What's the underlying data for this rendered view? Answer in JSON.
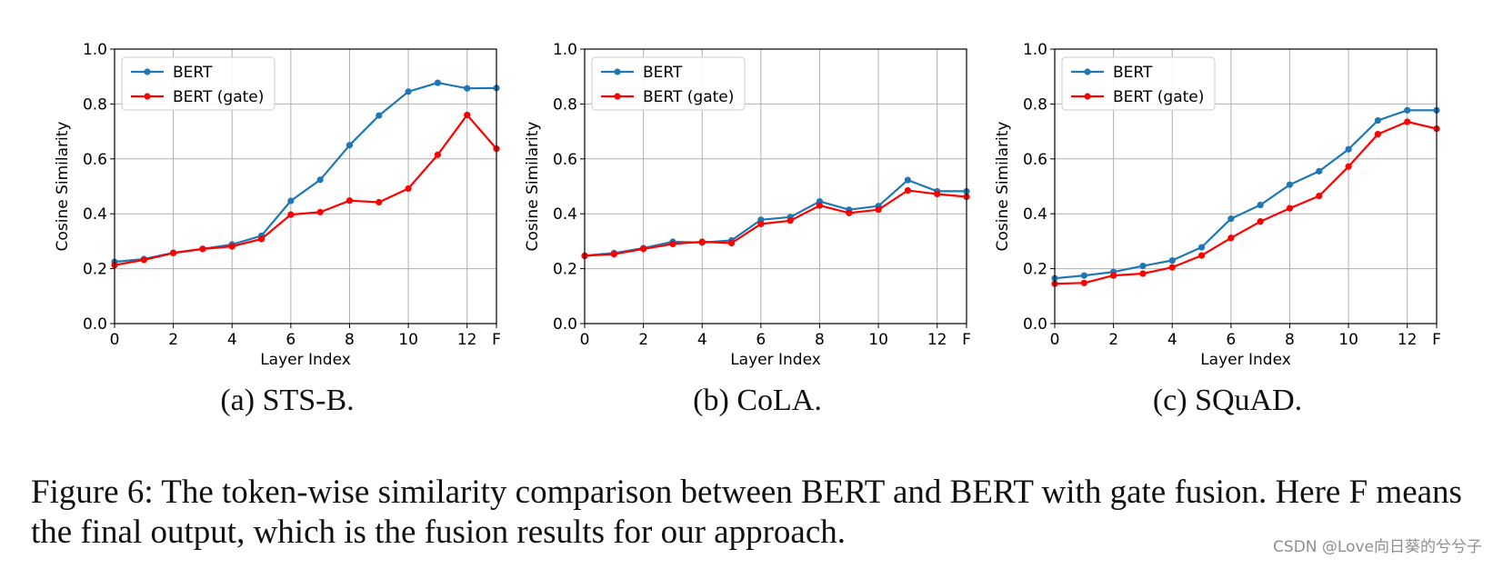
{
  "chart_data": [
    {
      "type": "line",
      "subcaption": "(a) STS-B.",
      "xlabel": "Layer Index",
      "ylabel": "Cosine Similarity",
      "x": [
        0,
        1,
        2,
        3,
        4,
        5,
        6,
        7,
        8,
        9,
        10,
        11,
        12,
        13
      ],
      "xlim": [
        0,
        13
      ],
      "ylim": [
        0,
        1
      ],
      "xticks": [
        0,
        2,
        4,
        6,
        8,
        10,
        12,
        13
      ],
      "xtick_labels": [
        "0",
        "2",
        "4",
        "6",
        "8",
        "10",
        "12",
        "F"
      ],
      "yticks": [
        0.0,
        0.2,
        0.4,
        0.6,
        0.8,
        1.0
      ],
      "ytick_labels": [
        "0.0",
        "0.2",
        "0.4",
        "0.6",
        "0.8",
        "1.0"
      ],
      "grid": true,
      "legend": "top-left",
      "series": [
        {
          "name": "BERT",
          "color": "#1f77b4",
          "values": [
            0.225,
            0.235,
            0.258,
            0.272,
            0.288,
            0.32,
            0.447,
            0.524,
            0.65,
            0.758,
            0.845,
            0.877,
            0.857,
            0.858
          ]
        },
        {
          "name": "BERT (gate)",
          "color": "#ff0000",
          "values": [
            0.213,
            0.232,
            0.257,
            0.272,
            0.281,
            0.308,
            0.397,
            0.406,
            0.448,
            0.442,
            0.492,
            0.615,
            0.76,
            0.637
          ]
        }
      ]
    },
    {
      "type": "line",
      "subcaption": "(b) CoLA.",
      "xlabel": "Layer Index",
      "ylabel": "Cosine Similarity",
      "x": [
        0,
        1,
        2,
        3,
        4,
        5,
        6,
        7,
        8,
        9,
        10,
        11,
        12,
        13
      ],
      "xlim": [
        0,
        13
      ],
      "ylim": [
        0,
        1
      ],
      "xticks": [
        0,
        2,
        4,
        6,
        8,
        10,
        12,
        13
      ],
      "xtick_labels": [
        "0",
        "2",
        "4",
        "6",
        "8",
        "10",
        "12",
        "F"
      ],
      "yticks": [
        0.0,
        0.2,
        0.4,
        0.6,
        0.8,
        1.0
      ],
      "ytick_labels": [
        "0.0",
        "0.2",
        "0.4",
        "0.6",
        "0.8",
        "1.0"
      ],
      "grid": true,
      "legend": "top-left",
      "series": [
        {
          "name": "BERT",
          "color": "#1f77b4",
          "values": [
            0.247,
            0.257,
            0.275,
            0.298,
            0.295,
            0.303,
            0.378,
            0.388,
            0.445,
            0.415,
            0.428,
            0.523,
            0.482,
            0.482
          ]
        },
        {
          "name": "BERT (gate)",
          "color": "#ff0000",
          "values": [
            0.247,
            0.253,
            0.272,
            0.29,
            0.298,
            0.293,
            0.363,
            0.375,
            0.43,
            0.403,
            0.415,
            0.485,
            0.472,
            0.462
          ]
        }
      ]
    },
    {
      "type": "line",
      "subcaption": "(c) SQuAD.",
      "xlabel": "Layer Index",
      "ylabel": "Cosine Similarity",
      "x": [
        0,
        1,
        2,
        3,
        4,
        5,
        6,
        7,
        8,
        9,
        10,
        11,
        12,
        13
      ],
      "xlim": [
        0,
        13
      ],
      "ylim": [
        0,
        1
      ],
      "xticks": [
        0,
        2,
        4,
        6,
        8,
        10,
        12,
        13
      ],
      "xtick_labels": [
        "0",
        "2",
        "4",
        "6",
        "8",
        "10",
        "12",
        "F"
      ],
      "yticks": [
        0.0,
        0.2,
        0.4,
        0.6,
        0.8,
        1.0
      ],
      "ytick_labels": [
        "0.0",
        "0.2",
        "0.4",
        "0.6",
        "0.8",
        "1.0"
      ],
      "grid": true,
      "legend": "top-left",
      "series": [
        {
          "name": "BERT",
          "color": "#1f77b4",
          "values": [
            0.165,
            0.175,
            0.188,
            0.21,
            0.23,
            0.278,
            0.382,
            0.432,
            0.506,
            0.555,
            0.635,
            0.74,
            0.777,
            0.777
          ]
        },
        {
          "name": "BERT (gate)",
          "color": "#ff0000",
          "values": [
            0.145,
            0.148,
            0.175,
            0.182,
            0.205,
            0.248,
            0.312,
            0.372,
            0.42,
            0.465,
            0.572,
            0.69,
            0.735,
            0.71
          ]
        }
      ]
    }
  ],
  "figure_caption": "Figure 6: The token-wise similarity comparison between BERT and BERT with gate fusion. Here F means the final output, which is the fusion results for our approach.",
  "watermark": "CSDN @Love向日葵的兮兮子"
}
